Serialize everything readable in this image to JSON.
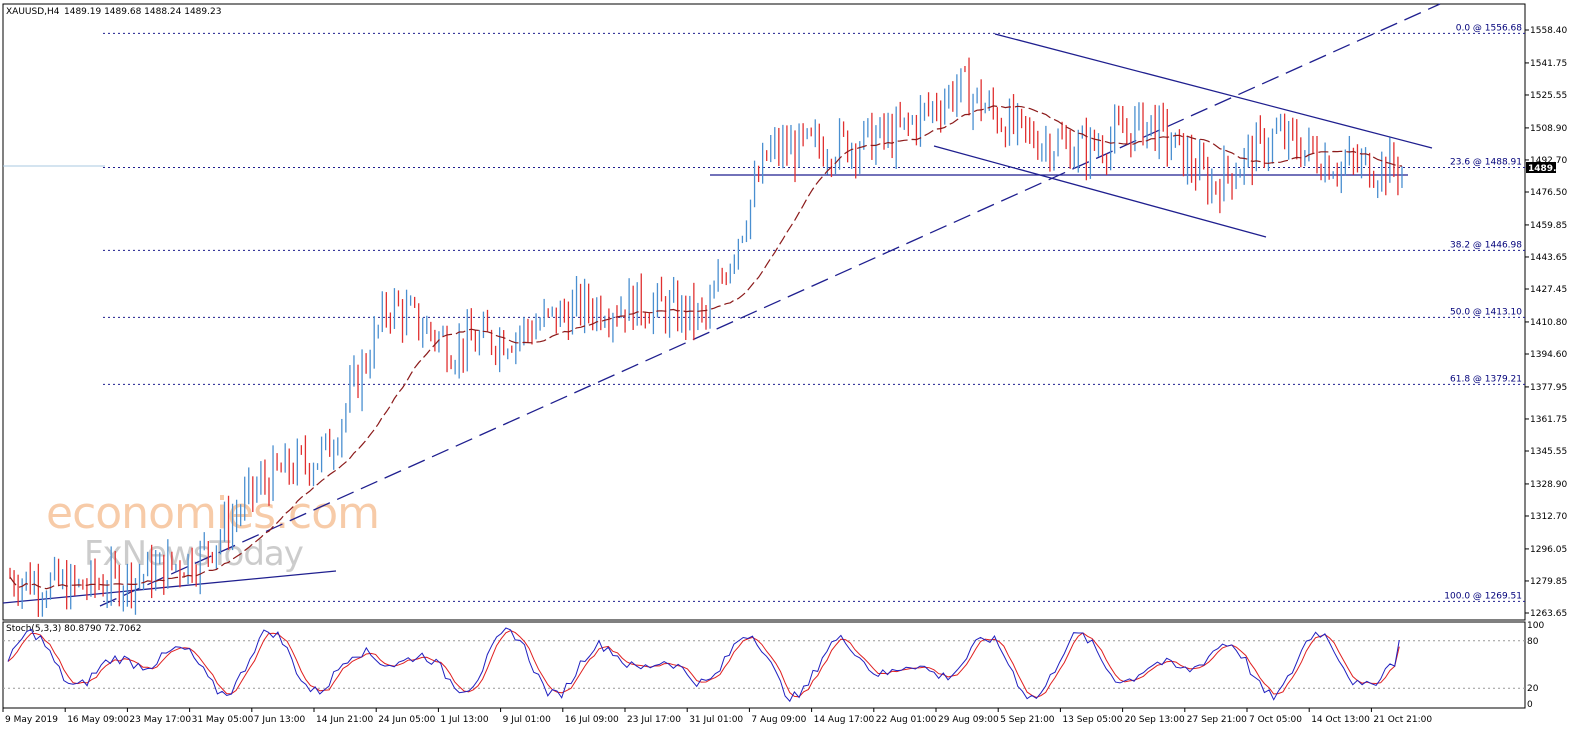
{
  "header": {
    "symbol": "XAUUSD,H4",
    "ohlc": "1489.19 1489.68 1488.24 1489.23"
  },
  "price_axis": {
    "ticks": [
      "1558.40",
      "1541.75",
      "1525.55",
      "1508.90",
      "1492.70",
      "1476.50",
      "1459.85",
      "1443.65",
      "1427.45",
      "1410.80",
      "1394.60",
      "1377.95",
      "1361.75",
      "1345.55",
      "1328.90",
      "1312.70",
      "1296.05",
      "1279.85",
      "1263.65"
    ],
    "current_price": "1489.23"
  },
  "fib_levels": [
    {
      "label": "0.0 @ 1556.68",
      "value": 1556.68
    },
    {
      "label": "23.6 @ 1488.91",
      "value": 1488.91
    },
    {
      "label": "38.2 @ 1446.98",
      "value": 1446.98
    },
    {
      "label": "50.0 @ 1413.10",
      "value": 1413.1
    },
    {
      "label": "61.8 @ 1379.21",
      "value": 1379.21
    },
    {
      "label": "100.0 @ 1269.51",
      "value": 1269.51
    }
  ],
  "stoch_panel": {
    "label": "Stoch(5,3,3) 80.8790 72.7062",
    "ticks": [
      "100",
      "80",
      "20",
      "0"
    ]
  },
  "time_axis": [
    "9 May 2019",
    "16 May 09:00",
    "23 May 17:00",
    "31 May 05:00",
    "7 Jun 13:00",
    "14 Jun 21:00",
    "24 Jun 05:00",
    "1 Jul 13:00",
    "9 Jul 01:00",
    "16 Jul 09:00",
    "23 Jul 17:00",
    "31 Jul 01:00",
    "7 Aug 09:00",
    "14 Aug 17:00",
    "22 Aug 01:00",
    "29 Aug 09:00",
    "5 Sep 21:00",
    "13 Sep 05:00",
    "20 Sep 13:00",
    "27 Sep 21:00",
    "7 Oct 05:00",
    "14 Oct 13:00",
    "21 Oct 21:00"
  ],
  "watermark": {
    "line1": "economies.com",
    "line2": "FxNewsToday"
  },
  "colors": {
    "bull": "#4a8fd0",
    "bear": "#e03030",
    "ma": "#8b1a1a",
    "trend": "#1f1f8f",
    "stoch_main": "#2020c0",
    "stoch_signal": "#e02020"
  },
  "chart_data": {
    "type": "line",
    "title": "XAUUSD,H4",
    "ylim": [
      1263.65,
      1558.4
    ],
    "price_path": {
      "x": [
        "9 May 2019",
        "16 May 09:00",
        "23 May 17:00",
        "31 May 05:00",
        "7 Jun 13:00",
        "14 Jun 21:00",
        "24 Jun 05:00",
        "1 Jul 13:00",
        "9 Jul 01:00",
        "16 Jul 09:00",
        "23 Jul 17:00",
        "31 Jul 01:00",
        "7 Aug 09:00",
        "14 Aug 17:00",
        "22 Aug 01:00",
        "29 Aug 09:00",
        "5 Sep 21:00",
        "13 Sep 05:00",
        "20 Sep 13:00",
        "27 Sep 21:00",
        "7 Oct 05:00",
        "14 Oct 13:00",
        "21 Oct 21:00"
      ],
      "y": [
        1282,
        1276,
        1282,
        1292,
        1330,
        1345,
        1420,
        1398,
        1405,
        1418,
        1420,
        1412,
        1497,
        1500,
        1505,
        1530,
        1505,
        1498,
        1512,
        1480,
        1505,
        1490,
        1489
      ]
    },
    "stoch": {
      "main_last": 80.879,
      "signal_last": 72.7062,
      "ylim": [
        0,
        100
      ],
      "levels": [
        20,
        80
      ]
    }
  }
}
